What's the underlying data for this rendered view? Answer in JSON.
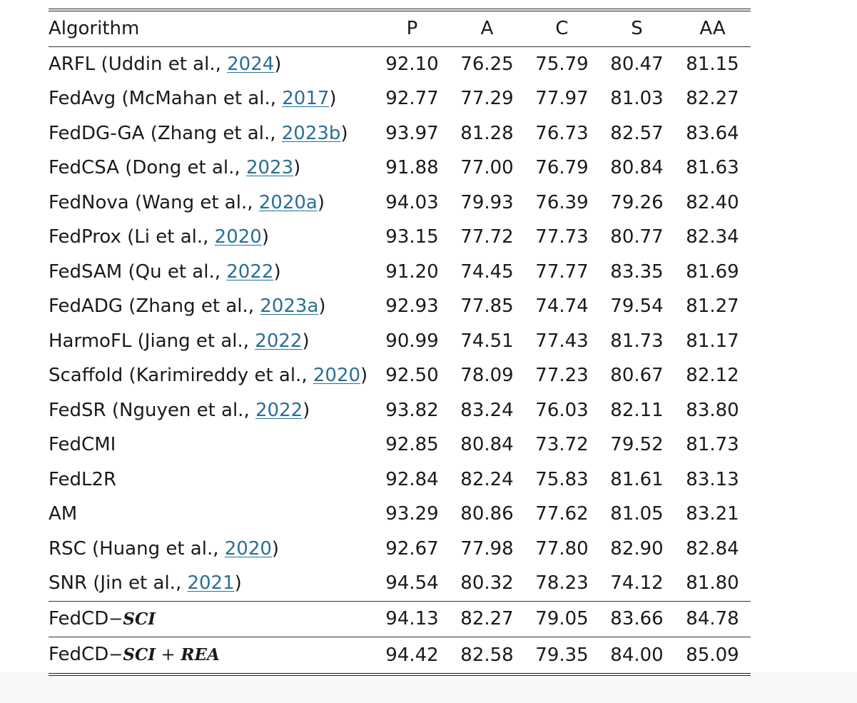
{
  "table": {
    "columns": [
      "Algorithm",
      "P",
      "A",
      "C",
      "S",
      "AA"
    ],
    "rows": [
      {
        "name": "ARFL (Uddin et al., ",
        "cite": "2024",
        "close": ")",
        "P": "92.10",
        "A": "76.25",
        "C": "75.79",
        "S": "80.47",
        "AA": "81.15"
      },
      {
        "name": "FedAvg (McMahan et al., ",
        "cite": "2017",
        "close": ")",
        "P": "92.77",
        "A": "77.29",
        "C": "77.97",
        "S": "81.03",
        "AA": "82.27"
      },
      {
        "name": "FedDG-GA (Zhang et al., ",
        "cite": "2023b",
        "close": ")",
        "P": "93.97",
        "A": "81.28",
        "C": "76.73",
        "S": "82.57",
        "AA": "83.64"
      },
      {
        "name": "FedCSA (Dong et al., ",
        "cite": "2023",
        "close": ")",
        "P": "91.88",
        "A": "77.00",
        "C": "76.79",
        "S": "80.84",
        "AA": "81.63"
      },
      {
        "name": "FedNova (Wang et al., ",
        "cite": "2020a",
        "close": ")",
        "P": "94.03",
        "A": "79.93",
        "C": "76.39",
        "S": "79.26",
        "AA": "82.40"
      },
      {
        "name": "FedProx (Li et al., ",
        "cite": "2020",
        "close": ")",
        "P": "93.15",
        "A": "77.72",
        "C": "77.73",
        "S": "80.77",
        "AA": "82.34"
      },
      {
        "name": "FedSAM (Qu et al., ",
        "cite": "2022",
        "close": ")",
        "P": "91.20",
        "A": "74.45",
        "C": "77.77",
        "S": "83.35",
        "AA": "81.69"
      },
      {
        "name": "FedADG (Zhang et al., ",
        "cite": "2023a",
        "close": ")",
        "P": "92.93",
        "A": "77.85",
        "C": "74.74",
        "S": "79.54",
        "AA": "81.27"
      },
      {
        "name": "HarmoFL (Jiang et al., ",
        "cite": "2022",
        "close": ")",
        "P": "90.99",
        "A": "74.51",
        "C": "77.43",
        "S": "81.73",
        "AA": "81.17"
      },
      {
        "name": "Scaffold (Karimireddy et al., ",
        "cite": "2020",
        "close": ")",
        "P": "92.50",
        "A": "78.09",
        "C": "77.23",
        "S": "80.67",
        "AA": "82.12"
      },
      {
        "name": "FedSR (Nguyen et al., ",
        "cite": "2022",
        "close": ")",
        "P": "93.82",
        "A": "83.24",
        "C": "76.03",
        "S": "82.11",
        "AA": "83.80"
      },
      {
        "name": "FedCMI",
        "cite": "",
        "close": "",
        "P": "92.85",
        "A": "80.84",
        "C": "73.72",
        "S": "79.52",
        "AA": "81.73"
      },
      {
        "name": "FedL2R",
        "cite": "",
        "close": "",
        "P": "92.84",
        "A": "82.24",
        "C": "75.83",
        "S": "81.61",
        "AA": "83.13"
      },
      {
        "name": "AM",
        "cite": "",
        "close": "",
        "P": "93.29",
        "A": "80.86",
        "C": "77.62",
        "S": "81.05",
        "AA": "83.21"
      },
      {
        "name": "RSC (Huang et al., ",
        "cite": "2020",
        "close": ")",
        "P": "92.67",
        "A": "77.98",
        "C": "77.80",
        "S": "82.90",
        "AA": "82.84"
      },
      {
        "name": "SNR (Jin et al., ",
        "cite": "2021",
        "close": ")",
        "P": "94.54",
        "A": "80.32",
        "C": "78.23",
        "S": "74.12",
        "AA": "81.80"
      }
    ],
    "ours": [
      {
        "prefix": "FedCD",
        "minus": "−",
        "sci": "SCI",
        "plus": "",
        "rea": "",
        "P": "94.13",
        "A": "82.27",
        "C": "79.05",
        "S": "83.66",
        "AA": "84.78"
      },
      {
        "prefix": "FedCD",
        "minus": "−",
        "sci": "SCI",
        "plus": " + ",
        "rea": "REA",
        "P": "94.42",
        "A": "82.58",
        "C": "79.35",
        "S": "84.00",
        "AA": "85.09"
      }
    ],
    "bold_cells": [
      {
        "row": "SNR",
        "col": "P"
      },
      {
        "row": "FedSR",
        "col": "A"
      },
      {
        "row": "FedCD-SCI+REA",
        "col": "C"
      },
      {
        "row": "FedCD-SCI+REA",
        "col": "S"
      },
      {
        "row": "FedCD-SCI+REA",
        "col": "AA"
      }
    ],
    "citation_color": "#2a6f96"
  }
}
